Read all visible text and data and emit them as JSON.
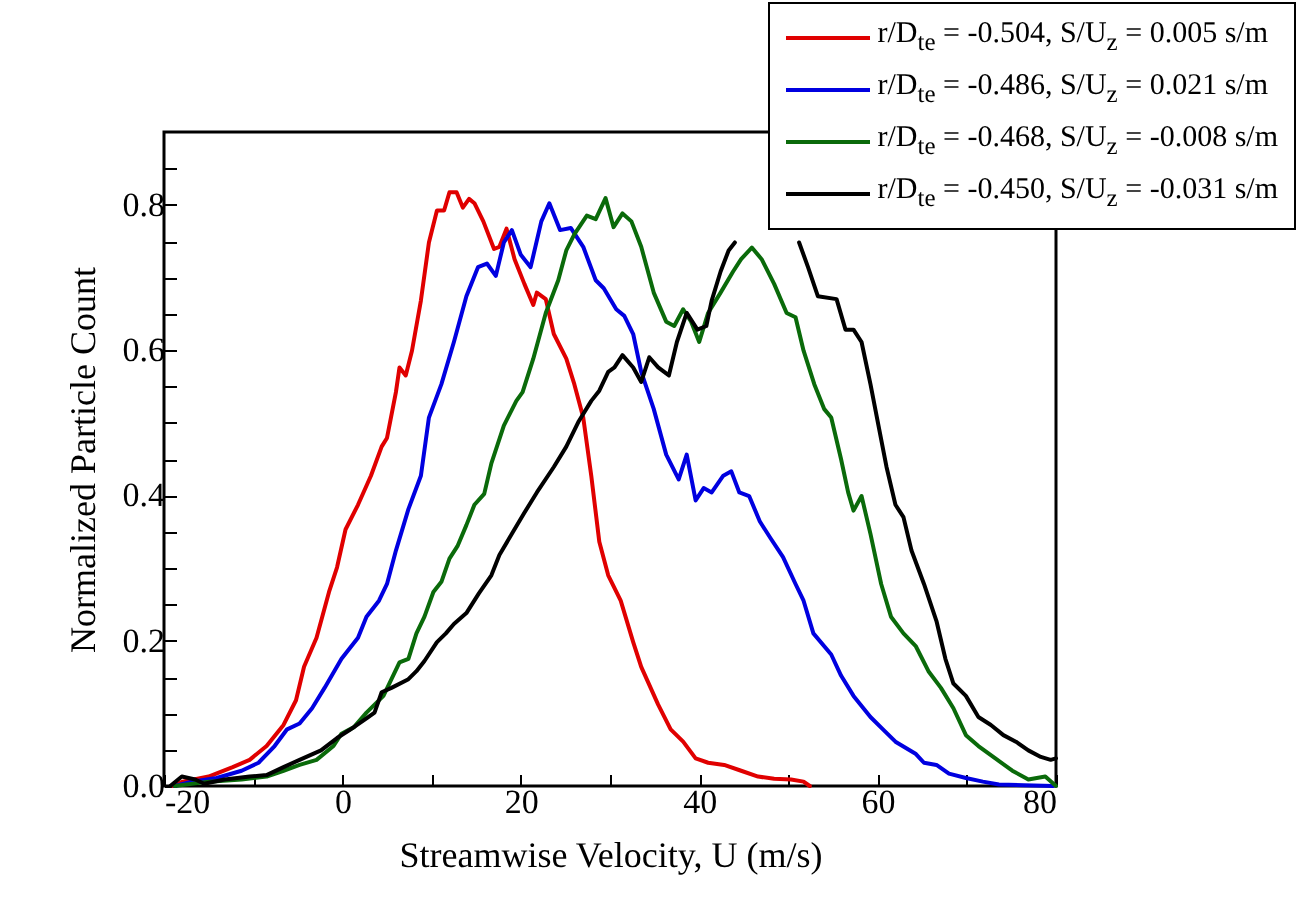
{
  "chart_data": {
    "type": "line",
    "xlabel": "Streamwise Velocity, U  (m/s)",
    "ylabel": "Normalized Particle Count",
    "xlim": [
      -20,
      80
    ],
    "ylim": [
      0,
      0.9
    ],
    "xticks": [
      -20,
      {
        "value": -10,
        "label": null
      },
      0,
      {
        "value": 10,
        "label": null
      },
      20,
      {
        "value": 30,
        "label": null
      },
      40,
      {
        "value": 50,
        "label": null
      },
      60,
      {
        "value": 70,
        "label": null
      },
      80
    ],
    "yticks": [
      {
        "value": 0,
        "label": "0.0"
      },
      {
        "value": 0.05,
        "label": null
      },
      {
        "value": 0.1,
        "label": null
      },
      {
        "value": 0.15,
        "label": null
      },
      0.2,
      {
        "value": 0.25,
        "label": null
      },
      {
        "value": 0.3,
        "label": null
      },
      {
        "value": 0.35,
        "label": null
      },
      0.4,
      {
        "value": 0.45,
        "label": null
      },
      {
        "value": 0.5,
        "label": null
      },
      {
        "value": 0.55,
        "label": null
      },
      0.6,
      {
        "value": 0.65,
        "label": null
      },
      {
        "value": 0.7,
        "label": null
      },
      {
        "value": 0.75,
        "label": null
      },
      0.8,
      {
        "value": 0.85,
        "label": null
      }
    ],
    "grid": false,
    "legend": "top right",
    "marker": "none",
    "line_style": "solid",
    "series": [
      {
        "name": "r/D$_{te}$ = -0.504, S/U$_{z}$ = 0.005 s/m",
        "color": "#e00000",
        "x": [
          -19,
          -17.9,
          -15,
          -12.3,
          -10.4,
          -8.5,
          -6.6,
          -5.2,
          -4.3,
          -2.9,
          -1.5,
          -0.6,
          0.35,
          1.75,
          3.2,
          4.4,
          5.0,
          6.0,
          6.4,
          7.1,
          7.8,
          8.8,
          9.7,
          10.6,
          11.4,
          12.0,
          12.8,
          13.5,
          14.2,
          14.8,
          15.8,
          17.0,
          17.6,
          18.4,
          19.3,
          20.4,
          21.4,
          21.8,
          22.8,
          23.7,
          25.1,
          26.0,
          27.0,
          27.9,
          28.8,
          29.8,
          31.2,
          32.6,
          33.5,
          35.4,
          36.8,
          38.2,
          39.6,
          41.0,
          42.8,
          44.7,
          46.6,
          48.4,
          50.3,
          51.7,
          52.4
        ],
        "values": [
          0,
          0.006,
          0.013,
          0.026,
          0.036,
          0.055,
          0.084,
          0.118,
          0.164,
          0.204,
          0.267,
          0.301,
          0.353,
          0.387,
          0.427,
          0.467,
          0.479,
          0.542,
          0.576,
          0.565,
          0.599,
          0.668,
          0.748,
          0.792,
          0.792,
          0.817,
          0.817,
          0.796,
          0.808,
          0.802,
          0.777,
          0.739,
          0.742,
          0.767,
          0.725,
          0.691,
          0.662,
          0.679,
          0.67,
          0.622,
          0.588,
          0.553,
          0.507,
          0.427,
          0.336,
          0.29,
          0.255,
          0.198,
          0.164,
          0.112,
          0.078,
          0.061,
          0.038,
          0.032,
          0.029,
          0.021,
          0.013,
          0.01,
          0.009,
          0.006,
          0
        ]
      },
      {
        "name": "r/D$_{te}$ = -0.486, S/U$_{z}$ = 0.021 s/m",
        "color": "#0000e0",
        "x": [
          -18.8,
          -16.9,
          -14.1,
          -11.3,
          -9.4,
          -7.6,
          -6.2,
          -4.8,
          -3.4,
          -2.0,
          -0.1,
          1.75,
          2.7,
          4.1,
          5.0,
          6.0,
          7.4,
          8.8,
          9.7,
          11.1,
          12.5,
          13.9,
          15.2,
          16.2,
          17.2,
          18.1,
          19.0,
          20.0,
          21.1,
          22.3,
          23.2,
          24.4,
          25.6,
          27.0,
          28.4,
          29.3,
          30.7,
          31.6,
          32.6,
          33.5,
          34.9,
          36.3,
          37.7,
          38.6,
          39.6,
          40.5,
          41.4,
          42.7,
          43.6,
          44.5,
          45.6,
          46.8,
          48.0,
          49.4,
          50.8,
          51.7,
          52.8,
          54.8,
          55.9,
          57.3,
          59.2,
          60.6,
          62.0,
          64.3,
          65.2,
          66.6,
          68.0,
          69.9,
          71.8,
          73.6,
          76.4,
          79.7
        ],
        "values": [
          0,
          0.006,
          0.011,
          0.021,
          0.032,
          0.055,
          0.078,
          0.086,
          0.107,
          0.135,
          0.175,
          0.204,
          0.233,
          0.255,
          0.278,
          0.324,
          0.381,
          0.427,
          0.507,
          0.553,
          0.611,
          0.674,
          0.714,
          0.719,
          0.702,
          0.748,
          0.765,
          0.731,
          0.714,
          0.777,
          0.802,
          0.765,
          0.768,
          0.742,
          0.696,
          0.685,
          0.656,
          0.647,
          0.622,
          0.57,
          0.519,
          0.456,
          0.422,
          0.456,
          0.393,
          0.41,
          0.404,
          0.427,
          0.433,
          0.404,
          0.399,
          0.364,
          0.341,
          0.315,
          0.278,
          0.255,
          0.21,
          0.181,
          0.152,
          0.124,
          0.095,
          0.078,
          0.061,
          0.044,
          0.032,
          0.029,
          0.017,
          0.011,
          0.006,
          0.002,
          0.001,
          0
        ]
      },
      {
        "name": "r/D$_{te}$ = -0.468, S/U$_{z}$ = -0.008 s/m",
        "color": "#0a6a0a",
        "x": [
          -18.8,
          -15,
          -11.3,
          -8.5,
          -6.6,
          -4.8,
          -2.9,
          -1.0,
          -0.1,
          1.3,
          2.7,
          4.6,
          5.5,
          6.4,
          7.4,
          8.3,
          9.2,
          10.2,
          11.1,
          12.0,
          12.9,
          13.9,
          14.8,
          15.9,
          16.7,
          18.1,
          19.5,
          20.2,
          21.4,
          22.8,
          24.2,
          25.1,
          26.0,
          27.4,
          28.4,
          29.5,
          30.4,
          31.4,
          32.4,
          33.5,
          34.9,
          36.3,
          37.2,
          38.2,
          39.1,
          40.0,
          41.0,
          42.4,
          43.8,
          44.7,
          45.9,
          47.0,
          48.4,
          49.8,
          50.8,
          51.7,
          52.9,
          54.0,
          54.8,
          55.9,
          56.7,
          57.3,
          58.2,
          59.2,
          60.4,
          61.5,
          62.9,
          64.3,
          65.7,
          67.1,
          68.5,
          69.9,
          71.3,
          73.2,
          75.1,
          76.9,
          78.8,
          80
        ],
        "values": [
          0,
          0.006,
          0.009,
          0.013,
          0.021,
          0.029,
          0.036,
          0.055,
          0.072,
          0.081,
          0.101,
          0.124,
          0.147,
          0.17,
          0.175,
          0.21,
          0.233,
          0.267,
          0.281,
          0.313,
          0.33,
          0.359,
          0.387,
          0.402,
          0.444,
          0.496,
          0.53,
          0.542,
          0.588,
          0.651,
          0.696,
          0.737,
          0.759,
          0.785,
          0.78,
          0.809,
          0.769,
          0.788,
          0.777,
          0.742,
          0.679,
          0.639,
          0.633,
          0.656,
          0.639,
          0.611,
          0.651,
          0.679,
          0.708,
          0.725,
          0.741,
          0.725,
          0.691,
          0.651,
          0.645,
          0.599,
          0.553,
          0.519,
          0.507,
          0.45,
          0.404,
          0.379,
          0.399,
          0.347,
          0.278,
          0.233,
          0.21,
          0.192,
          0.158,
          0.135,
          0.107,
          0.07,
          0.055,
          0.038,
          0.021,
          0.009,
          0.013,
          0
        ]
      },
      {
        "name": "r/D$_{te}$ = -0.450, S/U$_{z}$ = -0.031 s/m",
        "color": "#000000",
        "x": [
          -19.3,
          -18,
          -16.5,
          -15.5,
          -13.2,
          -10.4,
          -8.5,
          -6.6,
          -4.8,
          -2.4,
          -0.6,
          0.8,
          2.7,
          3.6,
          4.4,
          5.5,
          7.4,
          8.3,
          9.2,
          10.6,
          11.6,
          12.5,
          13.9,
          15.3,
          16.7,
          17.6,
          19.0,
          20.4,
          21.8,
          23.7,
          25.1,
          26.5,
          27.9,
          28.8,
          29.8,
          30.5,
          31.4,
          32.6,
          33.5,
          34.4,
          35.4,
          36.6,
          37.5,
          38.6,
          39.8,
          40.8,
          41.4,
          42.4,
          43.3,
          44.0,
          47.6,
          51.2,
          52.2,
          53.3,
          55.4,
          56.4,
          57.3,
          58.2,
          59.2,
          60.1,
          61.0,
          62.0,
          62.9,
          63.8,
          65.2,
          66.6,
          67.6,
          68.5,
          69.9,
          71.3,
          72.7,
          74.1,
          75.5,
          76.9,
          78.3,
          79.4,
          80
        ],
        "values": [
          0,
          0.013,
          0.009,
          0.003,
          0.009,
          0.013,
          0.015,
          0.026,
          0.036,
          0.049,
          0.066,
          0.077,
          0.093,
          0.101,
          0.129,
          0.135,
          0.147,
          0.158,
          0.172,
          0.198,
          0.21,
          0.223,
          0.238,
          0.265,
          0.29,
          0.318,
          0.347,
          0.376,
          0.404,
          0.439,
          0.467,
          0.502,
          0.53,
          0.544,
          0.57,
          0.576,
          0.593,
          0.576,
          0.556,
          0.59,
          0.576,
          0.565,
          0.611,
          0.651,
          0.628,
          0.633,
          0.668,
          0.708,
          0.737,
          0.748,
          null,
          0.748,
          0.714,
          0.674,
          0.67,
          0.628,
          0.628,
          0.611,
          0.553,
          0.496,
          0.439,
          0.387,
          0.37,
          0.324,
          0.278,
          0.227,
          0.175,
          0.141,
          0.124,
          0.095,
          0.084,
          0.07,
          0.061,
          0.049,
          0.04,
          0.036,
          0.038
        ]
      }
    ]
  }
}
